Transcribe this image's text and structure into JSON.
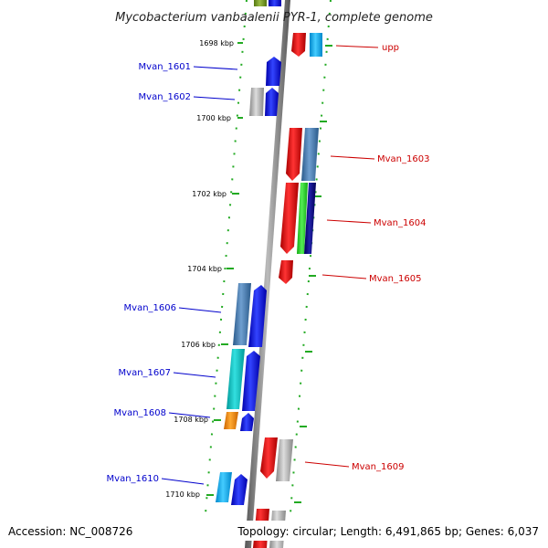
{
  "title": "Mycobacterium vanbaalenii PYR-1, complete genome",
  "footer": {
    "accession": "Accession: NC_008726",
    "topology": "Topology: circular; Length: 6,491,865 bp; Genes: 6,037"
  },
  "kbp_ticks": [
    "1698 kbp",
    "1700 kbp",
    "1702 kbp",
    "1704 kbp",
    "1706 kbp",
    "1708 kbp",
    "1710 kbp"
  ],
  "genes_left": [
    "Mvan_1601",
    "Mvan_1602",
    "Mvan_1606",
    "Mvan_1607",
    "Mvan_1608",
    "Mvan_1610"
  ],
  "genes_right": [
    "upp",
    "Mvan_1603",
    "Mvan_1604",
    "Mvan_1605",
    "Mvan_1609"
  ],
  "colors": {
    "forward_strand": "#0000ee",
    "reverse_strand": "#ee0000",
    "backbone": "#888888",
    "tick": "#339933"
  }
}
